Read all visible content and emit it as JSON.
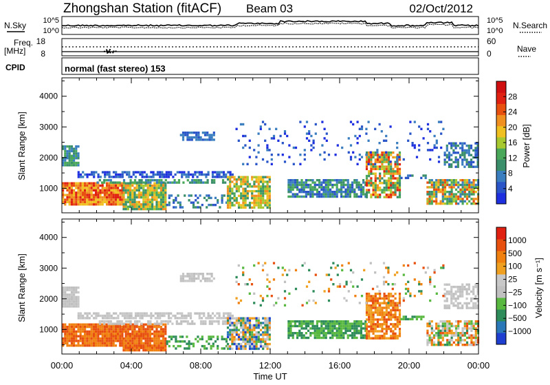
{
  "header": {
    "title": "Zhongshan Station (fitACF)",
    "beam": "Beam 03",
    "date": "02/Oct/2012"
  },
  "top_panels": {
    "nsky_label": "N.Sky",
    "nsky_ticks": [
      "10^5",
      "10^0"
    ],
    "nsearch_label": "N.Search",
    "nsearch_ticks": [
      "10^5",
      "10^0"
    ],
    "freq_label": "Freq.",
    "freq_unit": "[MHz]",
    "freq_ticks": [
      "18",
      "8"
    ],
    "nave_label": "Nave",
    "nave_ticks": [
      "60",
      "0"
    ],
    "cpid_label": "CPID",
    "cpid_value": "normal (fast stereo) 153"
  },
  "chart_data": [
    {
      "type": "heatmap",
      "name": "power-panel",
      "ylabel": "Slant Range [km]",
      "y_ticks": [
        "4000",
        "3000",
        "2000",
        "1000"
      ],
      "y_values": [
        4000,
        3000,
        2000,
        1000
      ],
      "ylim": [
        200,
        4600
      ],
      "xlim_hours": [
        0,
        24
      ],
      "colorbar": {
        "label": "Power [dB]",
        "ticks": [
          "28",
          "24",
          "20",
          "16",
          "12",
          "8",
          "4"
        ],
        "colors": [
          "#1e2fe0",
          "#2a55c8",
          "#3a7ec0",
          "#3a8f6a",
          "#4aa85a",
          "#a8c830",
          "#f0c020",
          "#f09020",
          "#e85010",
          "#e02010",
          "#d01010"
        ]
      }
    },
    {
      "type": "heatmap",
      "name": "velocity-panel",
      "ylabel": "Slant Range [km]",
      "y_ticks": [
        "4000",
        "3000",
        "2000",
        "1000"
      ],
      "y_values": [
        4000,
        3000,
        2000,
        1000
      ],
      "ylim": [
        200,
        4600
      ],
      "xlim_hours": [
        0,
        24
      ],
      "colorbar": {
        "label": "Velocity [m s⁻¹]",
        "ticks": [
          "1000",
          "500",
          "100",
          "25",
          "−25",
          "−100",
          "−500",
          "−1000"
        ],
        "colors": [
          "#1e3fd0",
          "#2a78b8",
          "#2e8c5a",
          "#58b840",
          "#c0c0c0",
          "#c8c8c8",
          "#f0a020",
          "#f08010",
          "#e85010",
          "#e02010"
        ]
      }
    }
  ],
  "x_axis": {
    "ticks": [
      "00:00",
      "04:00",
      "08:00",
      "12:00",
      "16:00",
      "20:00",
      "00:00"
    ],
    "label": "Time UT"
  }
}
